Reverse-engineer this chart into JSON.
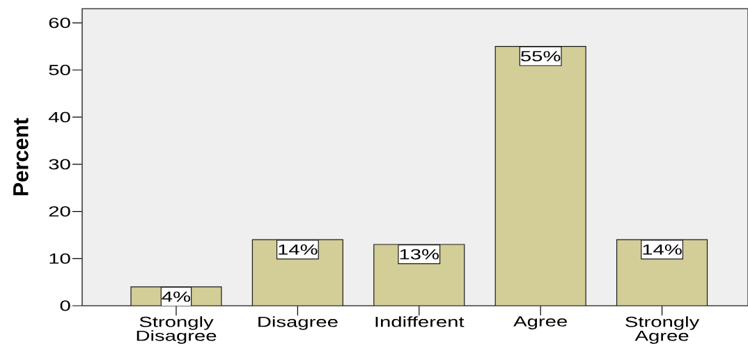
{
  "chart_data": {
    "type": "bar",
    "ylabel": "Percent",
    "categories": [
      "Strongly Disagree",
      "Disagree",
      "Indifferent",
      "Agree",
      "Strongly Agree"
    ],
    "values": [
      4,
      14,
      13,
      55,
      14
    ],
    "value_labels": [
      "4%",
      "14%",
      "13%",
      "55%",
      "14%"
    ],
    "color": "#d3ce97",
    "ylim": [
      0,
      63
    ],
    "yticks": [
      0,
      10,
      20,
      30,
      40,
      50,
      60
    ]
  }
}
